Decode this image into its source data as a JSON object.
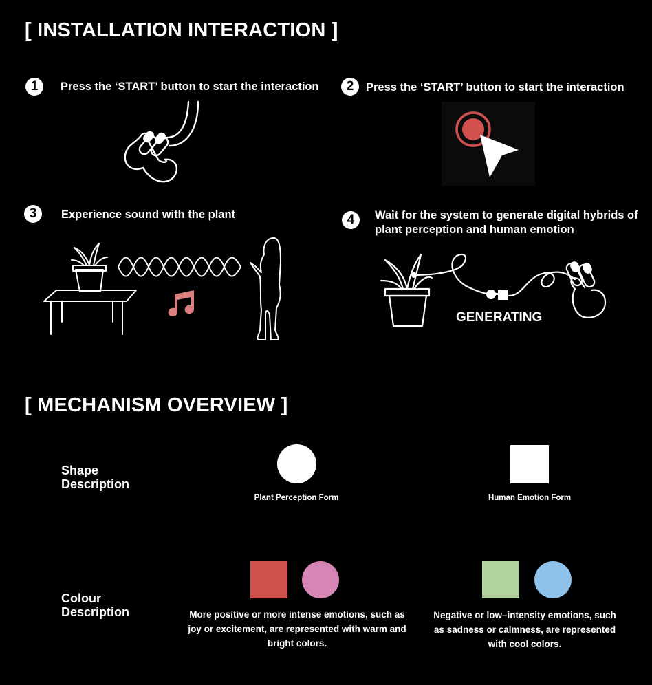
{
  "installation": {
    "title": "[ INSTALLATION INTERACTION ]",
    "steps": [
      {
        "number": "1",
        "text": "Press the ‘START’ button to start the interaction"
      },
      {
        "number": "2",
        "text": "Press the ‘START’ button to start the interaction"
      },
      {
        "number": "3",
        "text": "Experience sound with the plant"
      },
      {
        "number": "4",
        "text": "Wait for the system to generate digital hybrids of plant perception and human emotion"
      }
    ],
    "generating_label": "GENERATING"
  },
  "mechanism": {
    "title": "[ MECHANISM OVERVIEW ]",
    "shape_label": "Shape\nDescription",
    "colour_label": "Colour\nDescription",
    "plant_form_caption": "Plant Perception Form",
    "human_form_caption": "Human Emotion Form",
    "positive_text": "More positive or more intense emotions, such as joy or excitement, are represented with warm and bright colors.",
    "negative_text": "Negative or low–intensity emotions, such as sadness or calmness, are represented with cool colors."
  },
  "colors": {
    "background": "#000000",
    "accent_red": "#d0504e",
    "music_note": "#d9807e",
    "warm_square": "#d0504e",
    "warm_circle": "#d685b5",
    "cool_square": "#b1d29c",
    "cool_circle": "#8fc2ea"
  },
  "icons": {
    "step1": "touch-hand-icon",
    "step2": "cursor-click-icon",
    "step3": "plant-sound-person-icon",
    "step4": "plant-to-hand-generation-icon"
  }
}
